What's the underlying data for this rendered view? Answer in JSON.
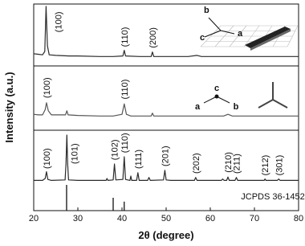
{
  "chart_data": [
    {
      "type": "line",
      "color": "#2a2a2a",
      "ylim": [
        0,
        100
      ],
      "x": [
        20,
        21,
        22,
        22.5,
        22.8,
        23.1,
        23.5,
        25,
        28,
        30,
        35,
        38,
        40.2,
        40.5,
        40.8,
        44,
        46.6,
        46.9,
        47.2,
        50,
        55,
        57,
        58,
        60,
        65,
        70,
        75,
        80
      ],
      "values": [
        16,
        15,
        14,
        20,
        100,
        30,
        14,
        13,
        12,
        12,
        11,
        11,
        12,
        22,
        12,
        11,
        11,
        19,
        11,
        11,
        11,
        13,
        11,
        11,
        11,
        11,
        11,
        11
      ],
      "annotations": [
        {
          "text": "(100)",
          "x": 25.5,
          "y": 54
        },
        {
          "text": "(110)",
          "x": 40.5,
          "y": 28
        },
        {
          "text": "(200)",
          "x": 46.9,
          "y": 26
        }
      ],
      "inset_labels": [
        "b",
        "c",
        "a"
      ]
    },
    {
      "type": "line",
      "color": "#555555",
      "ylim": [
        0,
        100
      ],
      "x": [
        20,
        21,
        22,
        22.6,
        22.9,
        23.3,
        24,
        27.2,
        27.5,
        27.8,
        30,
        35,
        38,
        40,
        40.5,
        41,
        42,
        46.6,
        46.9,
        47.2,
        50,
        55,
        60,
        63,
        64,
        65,
        70,
        75,
        80
      ],
      "values": [
        22,
        21,
        21,
        30,
        42,
        28,
        21,
        21,
        28,
        21,
        20,
        19,
        19,
        22,
        40,
        22,
        19,
        19,
        24,
        19,
        19,
        19,
        19,
        19,
        22,
        19,
        19,
        19,
        19
      ],
      "annotations": [
        {
          "text": "(100)",
          "x": 22.9,
          "y": 50
        },
        {
          "text": "(110)",
          "x": 40.5,
          "y": 48
        }
      ],
      "ylabel": "Intensity (a.u.)",
      "inset_labels": [
        "c",
        "a",
        "b"
      ]
    },
    {
      "type": "line",
      "color": "#2a2a2a",
      "ylim": [
        0,
        100
      ],
      "x": [
        20,
        22,
        22.6,
        22.9,
        23.2,
        24,
        27.1,
        27.3,
        27.5,
        27.7,
        27.9,
        30,
        36.4,
        36.6,
        36.8,
        38,
        38.3,
        38.6,
        40.2,
        40.5,
        40.8,
        41.8,
        42,
        42.2,
        43.3,
        43.6,
        43.9,
        45.8,
        46.1,
        46.4,
        49.4,
        49.7,
        50,
        51,
        56.4,
        56.7,
        57,
        62.5,
        62.8,
        63.1,
        63.7,
        64,
        64.3,
        65.6,
        65.9,
        66.2,
        72.2,
        72.4,
        72.6,
        75.2,
        75.5,
        75.8,
        80
      ],
      "values": [
        6,
        6,
        10,
        24,
        8,
        6,
        7,
        40,
        100,
        40,
        7,
        6,
        6,
        10,
        6,
        7,
        40,
        7,
        8,
        55,
        8,
        6,
        15,
        6,
        6,
        22,
        6,
        6,
        12,
        6,
        7,
        27,
        7,
        6,
        6,
        12,
        6,
        6,
        9,
        6,
        6,
        13,
        6,
        6,
        12,
        6,
        6,
        9,
        6,
        6,
        9,
        6,
        6
      ],
      "annotations": [
        {
          "text": "(100)",
          "x": 22.9,
          "y": 30
        },
        {
          "text": "(101)",
          "x": 29.2,
          "y": 40
        },
        {
          "text": "(102)",
          "x": 38.3,
          "y": 48
        },
        {
          "text": "(110)",
          "x": 40.5,
          "y": 63
        },
        {
          "text": "(111)",
          "x": 43.6,
          "y": 30
        },
        {
          "text": "(201)",
          "x": 49.7,
          "y": 35
        },
        {
          "text": "(202)",
          "x": 56.7,
          "y": 20
        },
        {
          "text": "(210)",
          "x": 64,
          "y": 22
        },
        {
          "text": "(211)",
          "x": 65.9,
          "y": 20
        },
        {
          "text": "(212)",
          "x": 72.4,
          "y": 16
        },
        {
          "text": "(301)",
          "x": 75.5,
          "y": 16
        }
      ],
      "reference": {
        "name": "JCPDS 36-1452",
        "x": [
          27.45,
          38.0,
          40.5
        ],
        "values": [
          100,
          50,
          35
        ],
        "ylim": [
          0,
          100
        ]
      },
      "xlim": [
        20,
        80
      ],
      "xticks": [
        20,
        30,
        40,
        50,
        60,
        70,
        80
      ],
      "xlabel": "2θ (degree)"
    }
  ]
}
